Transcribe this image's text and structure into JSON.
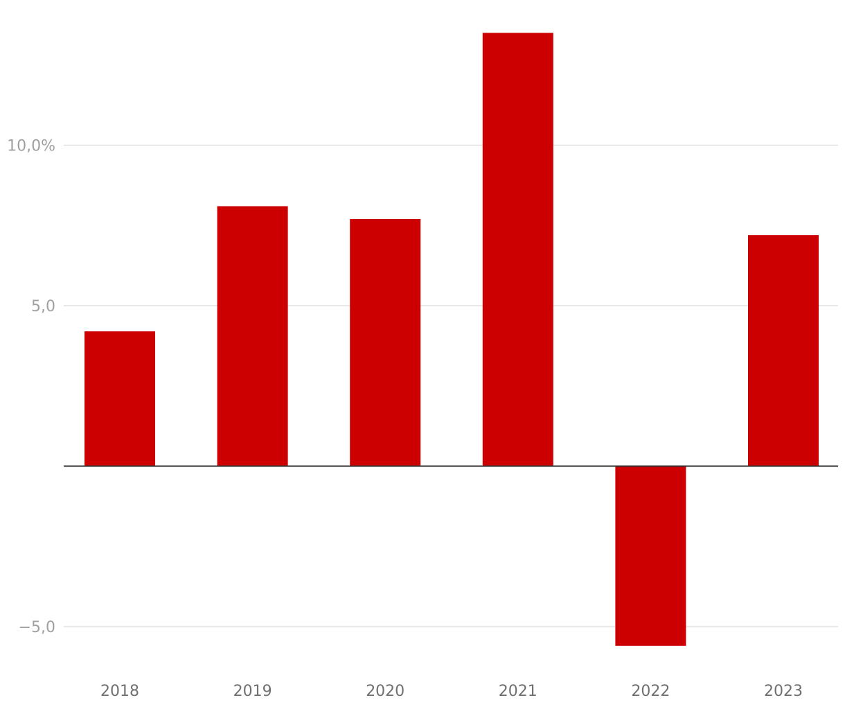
{
  "chart_data": {
    "type": "bar",
    "title": "",
    "xlabel": "",
    "ylabel": "",
    "categories": [
      "2018",
      "2019",
      "2020",
      "2021",
      "2022",
      "2023"
    ],
    "values": [
      4.2,
      8.1,
      7.7,
      13.5,
      -5.6,
      7.2
    ],
    "ylim": [
      -5.7,
      13.8
    ],
    "yticks": [
      -5,
      5,
      10
    ],
    "ytick_labels": [
      "−5,0",
      "5,0",
      "10,0%"
    ],
    "grid": true,
    "bar_color": "#cc0000",
    "legend": "none"
  }
}
